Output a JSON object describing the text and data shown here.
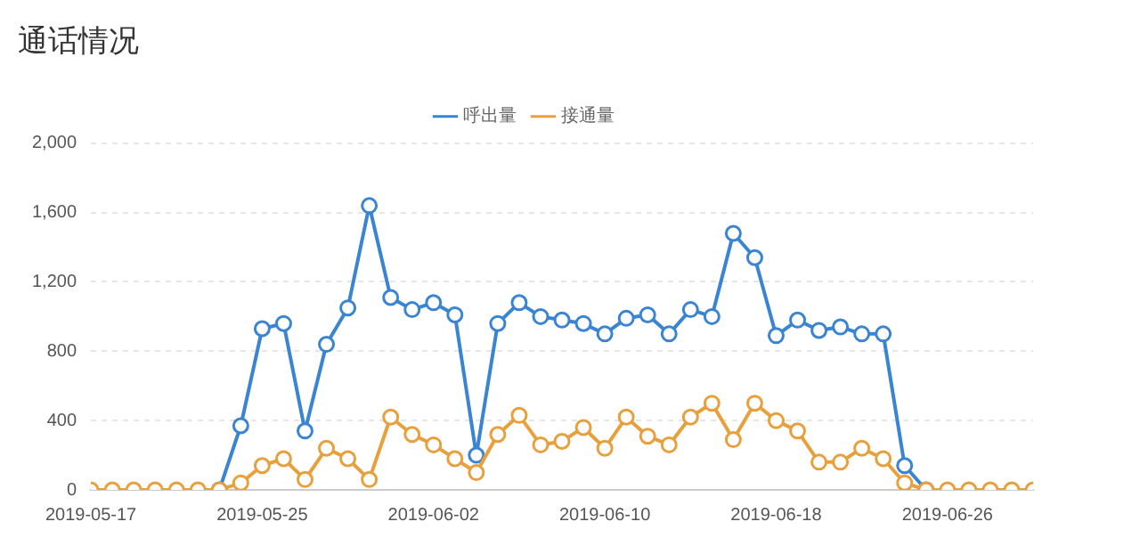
{
  "chart_data": {
    "type": "line",
    "title": "通话情况",
    "x": [
      "2019-05-17",
      "2019-05-18",
      "2019-05-19",
      "2019-05-20",
      "2019-05-21",
      "2019-05-22",
      "2019-05-23",
      "2019-05-24",
      "2019-05-25",
      "2019-05-26",
      "2019-05-27",
      "2019-05-28",
      "2019-05-29",
      "2019-05-30",
      "2019-05-31",
      "2019-06-01",
      "2019-06-02",
      "2019-06-03",
      "2019-06-04",
      "2019-06-05",
      "2019-06-06",
      "2019-06-07",
      "2019-06-08",
      "2019-06-09",
      "2019-06-10",
      "2019-06-11",
      "2019-06-12",
      "2019-06-13",
      "2019-06-14",
      "2019-06-15",
      "2019-06-16",
      "2019-06-17",
      "2019-06-18",
      "2019-06-19",
      "2019-06-20",
      "2019-06-21",
      "2019-06-22",
      "2019-06-23",
      "2019-06-24",
      "2019-06-25",
      "2019-06-26",
      "2019-06-27",
      "2019-06-28",
      "2019-06-29",
      "2019-06-30"
    ],
    "series": [
      {
        "name": "呼出量",
        "color": "#3a84d4",
        "values": [
          null,
          null,
          null,
          null,
          null,
          null,
          0,
          370,
          930,
          960,
          340,
          840,
          1050,
          1640,
          1110,
          1040,
          1080,
          1010,
          200,
          960,
          1080,
          1000,
          980,
          960,
          900,
          990,
          1010,
          900,
          1040,
          1000,
          1480,
          1340,
          890,
          980,
          920,
          940,
          900,
          900,
          140,
          0,
          null,
          null,
          null,
          null,
          null
        ]
      },
      {
        "name": "接通量",
        "color": "#e8a03c",
        "values": [
          0,
          0,
          0,
          0,
          0,
          0,
          0,
          40,
          140,
          180,
          60,
          240,
          180,
          60,
          420,
          320,
          260,
          180,
          100,
          320,
          430,
          260,
          280,
          360,
          240,
          420,
          310,
          260,
          420,
          500,
          290,
          500,
          400,
          340,
          160,
          160,
          240,
          180,
          40,
          0,
          0,
          0,
          0,
          0,
          0
        ]
      }
    ],
    "xlim": [
      "2019-05-17",
      "2019-06-30"
    ],
    "xticks": [
      "2019-05-17",
      "2019-05-25",
      "2019-06-02",
      "2019-06-10",
      "2019-06-18",
      "2019-06-26"
    ],
    "ylim": [
      0,
      2000
    ],
    "yticks": [
      0,
      400,
      800,
      {
        "value": 1200,
        "label": "1,200"
      },
      {
        "value": 1600,
        "label": "1,600"
      },
      {
        "value": 2000,
        "label": "2,000"
      }
    ],
    "grid": "y",
    "legend": "top",
    "marker": "circle",
    "line_style": "solid"
  }
}
